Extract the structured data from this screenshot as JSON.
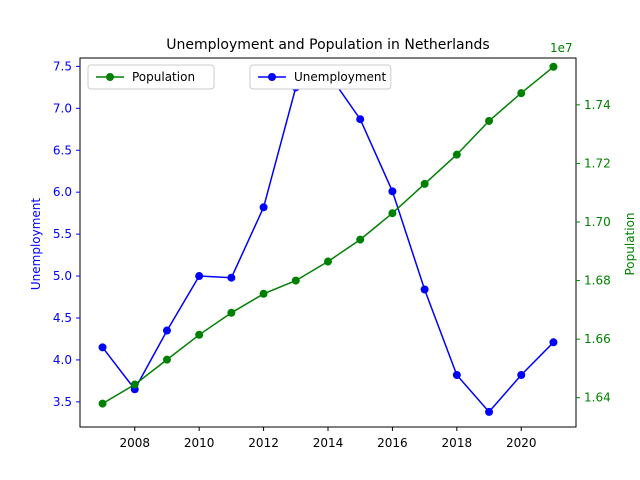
{
  "chart_data": {
    "type": "line",
    "title": "Unemployment and Population in Netherlands",
    "xlabel": "",
    "x": [
      2007,
      2008,
      2009,
      2010,
      2011,
      2012,
      2013,
      2014,
      2015,
      2016,
      2017,
      2018,
      2019,
      2020,
      2021
    ],
    "xlim": [
      2006.3,
      2021.7
    ],
    "xticks": [
      "2008",
      "2010",
      "2012",
      "2014",
      "2016",
      "2018",
      "2020"
    ],
    "grid": false,
    "left_axis": {
      "label": "Unemployment",
      "color": "#0000ff",
      "ylim": [
        3.2,
        7.6
      ],
      "ticks": [
        "3.5",
        "4.0",
        "4.5",
        "5.0",
        "5.5",
        "6.0",
        "6.5",
        "7.0",
        "7.5"
      ]
    },
    "right_axis": {
      "label": "Population",
      "color": "#008000",
      "ylim": [
        16300000,
        17560000
      ],
      "ticks": [
        "1.64",
        "1.66",
        "1.68",
        "1.70",
        "1.72",
        "1.74"
      ],
      "offset_text": "1e7"
    },
    "series": [
      {
        "name": "Unemployment",
        "axis": "left",
        "color": "#0000ff",
        "values": [
          4.15,
          3.65,
          4.35,
          5.0,
          4.98,
          5.82,
          7.25,
          7.42,
          6.87,
          6.01,
          4.84,
          3.82,
          3.38,
          3.82,
          4.21
        ]
      },
      {
        "name": "Population",
        "axis": "right",
        "color": "#008000",
        "values": [
          16380000,
          16445000,
          16530000,
          16615000,
          16690000,
          16755000,
          16800000,
          16865000,
          16940000,
          17030000,
          17130000,
          17230000,
          17345000,
          17440000,
          17530000
        ]
      }
    ],
    "legends": [
      {
        "placement": "upper-left",
        "entries": [
          "Population"
        ]
      },
      {
        "placement": "upper-center",
        "entries": [
          "Unemployment"
        ]
      }
    ]
  }
}
